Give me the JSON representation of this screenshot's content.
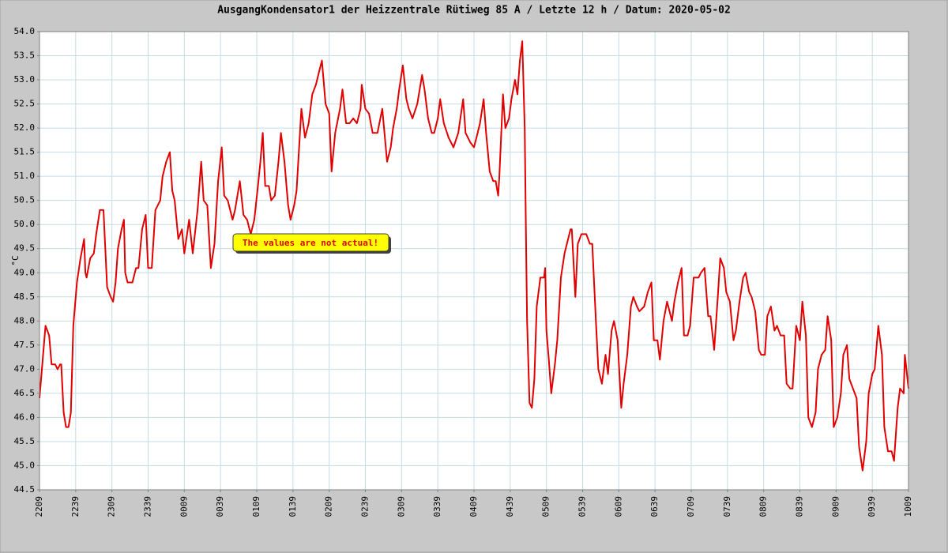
{
  "chart_data": {
    "type": "line",
    "title": "AusgangKondensator1 der Heizzentrale Rütiweg 85 A / Letzte 12 h / Datum: 2020-05-02",
    "ylabel": "°C",
    "annotation": "The values are not actual!",
    "grid": true,
    "ylim": [
      44.5,
      54.0
    ],
    "yticks": [
      44.5,
      {
        "value": 45.0,
        "label": "45.0"
      },
      45.5,
      {
        "value": 46.0,
        "label": "46.0"
      },
      46.5,
      {
        "value": 47.0,
        "label": "47.0"
      },
      47.5,
      {
        "value": 48.0,
        "label": "48.0"
      },
      48.5,
      {
        "value": 49.0,
        "label": "49.0"
      },
      49.5,
      {
        "value": 50.0,
        "label": "50.0"
      },
      50.5,
      {
        "value": 51.0,
        "label": "51.0"
      },
      51.5,
      {
        "value": 52.0,
        "label": "52.0"
      },
      52.5,
      {
        "value": 53.0,
        "label": "53.0"
      },
      53.5,
      {
        "value": 54.0,
        "label": "54.0"
      }
    ],
    "xlim": [
      0,
      720
    ],
    "xticks": [
      {
        "value": 0,
        "label": "2209"
      },
      {
        "value": 30,
        "label": "2239"
      },
      {
        "value": 60,
        "label": "2309"
      },
      {
        "value": 90,
        "label": "2339"
      },
      {
        "value": 120,
        "label": "0009"
      },
      {
        "value": 150,
        "label": "0039"
      },
      {
        "value": 180,
        "label": "0109"
      },
      {
        "value": 210,
        "label": "0139"
      },
      {
        "value": 240,
        "label": "0209"
      },
      {
        "value": 270,
        "label": "0239"
      },
      {
        "value": 300,
        "label": "0309"
      },
      {
        "value": 330,
        "label": "0339"
      },
      {
        "value": 360,
        "label": "0409"
      },
      {
        "value": 390,
        "label": "0439"
      },
      {
        "value": 420,
        "label": "0509"
      },
      {
        "value": 450,
        "label": "0539"
      },
      {
        "value": 480,
        "label": "0609"
      },
      {
        "value": 510,
        "label": "0639"
      },
      {
        "value": 540,
        "label": "0709"
      },
      {
        "value": 570,
        "label": "0739"
      },
      {
        "value": 600,
        "label": "0809"
      },
      {
        "value": 630,
        "label": "0839"
      },
      {
        "value": 660,
        "label": "0909"
      },
      {
        "value": 690,
        "label": "0939"
      },
      {
        "value": 720,
        "label": "1009"
      }
    ],
    "series": [
      {
        "color": "#e00000",
        "x": [
          0,
          5,
          8,
          10,
          13,
          15,
          17,
          18,
          20,
          22,
          24,
          26,
          28,
          31,
          34,
          37,
          38,
          39,
          42,
          45,
          47,
          50,
          53,
          56,
          59,
          61,
          63,
          65,
          68,
          70,
          71,
          73,
          77,
          80,
          82,
          85,
          88,
          90,
          93,
          96,
          100,
          102,
          105,
          108,
          110,
          112,
          115,
          118,
          120,
          124,
          127,
          131,
          134,
          136,
          139,
          142,
          145,
          148,
          151,
          153,
          156,
          160,
          162,
          166,
          169,
          172,
          175,
          178,
          181,
          183,
          185,
          187,
          190,
          192,
          195,
          198,
          200,
          203,
          206,
          208,
          211,
          213,
          217,
          220,
          223,
          226,
          229,
          232,
          234,
          237,
          240,
          242,
          245,
          249,
          251,
          254,
          257,
          260,
          263,
          266,
          267,
          270,
          273,
          276,
          280,
          284,
          288,
          291,
          293,
          296,
          298,
          301,
          304,
          306,
          309,
          313,
          317,
          319,
          322,
          325,
          327,
          330,
          332,
          335,
          339,
          343,
          347,
          351,
          353,
          357,
          360,
          363,
          365,
          368,
          370,
          373,
          376,
          378,
          380,
          381,
          384,
          386,
          389,
          391,
          394,
          396,
          398,
          400,
          402,
          403,
          404,
          406,
          408,
          410,
          412,
          415,
          418,
          419,
          420,
          422,
          424,
          427,
          429,
          432,
          435,
          437,
          440,
          441,
          444,
          446,
          449,
          453,
          456,
          458,
          461,
          463,
          466,
          469,
          471,
          474,
          476,
          479,
          482,
          484,
          487,
          490,
          492,
          495,
          497,
          501,
          504,
          507,
          509,
          512,
          514,
          517,
          520,
          524,
          526,
          529,
          532,
          534,
          537,
          539,
          542,
          546,
          548,
          551,
          554,
          556,
          559,
          562,
          564,
          567,
          569,
          572,
          575,
          577,
          580,
          583,
          585,
          588,
          590,
          593,
          596,
          598,
          601,
          603,
          606,
          609,
          611,
          614,
          617,
          619,
          622,
          624,
          627,
          630,
          632,
          635,
          637,
          640,
          643,
          645,
          648,
          651,
          653,
          656,
          658,
          661,
          664,
          666,
          669,
          671,
          674,
          677,
          679,
          682,
          685,
          687,
          690,
          692,
          695,
          698,
          700,
          703,
          706,
          708,
          711,
          713,
          716,
          717,
          720
        ],
        "values": [
          46.4,
          47.9,
          47.7,
          47.1,
          47.1,
          47.0,
          47.1,
          47.1,
          46.1,
          45.8,
          45.8,
          46.1,
          47.9,
          48.8,
          49.3,
          49.7,
          49.0,
          48.9,
          49.3,
          49.4,
          49.8,
          50.3,
          50.3,
          48.7,
          48.5,
          48.4,
          48.8,
          49.5,
          49.9,
          50.1,
          49.0,
          48.8,
          48.8,
          49.1,
          49.1,
          49.9,
          50.2,
          49.1,
          49.1,
          50.3,
          50.5,
          51.0,
          51.3,
          51.5,
          50.7,
          50.5,
          49.7,
          49.9,
          49.4,
          50.1,
          49.4,
          50.3,
          51.3,
          50.5,
          50.4,
          49.1,
          49.6,
          50.9,
          51.6,
          50.6,
          50.5,
          50.1,
          50.3,
          50.9,
          50.2,
          50.1,
          49.8,
          50.1,
          50.8,
          51.3,
          51.9,
          50.8,
          50.8,
          50.5,
          50.6,
          51.3,
          51.9,
          51.3,
          50.4,
          50.1,
          50.4,
          50.7,
          52.4,
          51.8,
          52.1,
          52.7,
          52.9,
          53.2,
          53.4,
          52.5,
          52.3,
          51.1,
          51.9,
          52.4,
          52.8,
          52.1,
          52.1,
          52.2,
          52.1,
          52.4,
          52.9,
          52.4,
          52.3,
          51.9,
          51.9,
          52.4,
          51.3,
          51.6,
          52.0,
          52.4,
          52.8,
          53.3,
          52.6,
          52.4,
          52.2,
          52.5,
          53.1,
          52.8,
          52.2,
          51.9,
          51.9,
          52.2,
          52.6,
          52.1,
          51.8,
          51.6,
          51.9,
          52.6,
          51.9,
          51.7,
          51.6,
          51.9,
          52.1,
          52.6,
          51.9,
          51.1,
          50.9,
          50.9,
          50.6,
          51.0,
          52.7,
          52.0,
          52.2,
          52.6,
          53.0,
          52.7,
          53.4,
          53.8,
          52.0,
          49.9,
          48.0,
          46.3,
          46.2,
          46.8,
          48.3,
          48.9,
          48.9,
          49.1,
          47.8,
          47.2,
          46.5,
          47.1,
          47.6,
          48.9,
          49.4,
          49.6,
          49.9,
          49.9,
          48.5,
          49.6,
          49.8,
          49.8,
          49.6,
          49.6,
          48.0,
          47.0,
          46.7,
          47.3,
          46.9,
          47.8,
          48.0,
          47.6,
          46.2,
          46.7,
          47.3,
          48.3,
          48.5,
          48.3,
          48.2,
          48.3,
          48.6,
          48.8,
          47.6,
          47.6,
          47.2,
          48.0,
          48.4,
          48.0,
          48.4,
          48.8,
          49.1,
          47.7,
          47.7,
          47.9,
          48.9,
          48.9,
          49.0,
          49.1,
          48.1,
          48.1,
          47.4,
          48.5,
          49.3,
          49.1,
          48.6,
          48.4,
          47.6,
          47.8,
          48.4,
          48.9,
          49.0,
          48.6,
          48.5,
          48.2,
          47.4,
          47.3,
          47.3,
          48.1,
          48.3,
          47.8,
          47.9,
          47.7,
          47.7,
          46.7,
          46.6,
          46.6,
          47.9,
          47.6,
          48.4,
          47.7,
          46.0,
          45.8,
          46.1,
          47.0,
          47.3,
          47.4,
          48.1,
          47.6,
          45.8,
          46.0,
          46.5,
          47.3,
          47.5,
          46.8,
          46.6,
          46.4,
          45.4,
          44.9,
          45.5,
          46.5,
          46.9,
          47.0,
          47.9,
          47.3,
          45.8,
          45.3,
          45.3,
          45.1,
          46.2,
          46.6,
          46.5,
          47.3,
          46.6
        ]
      }
    ]
  }
}
